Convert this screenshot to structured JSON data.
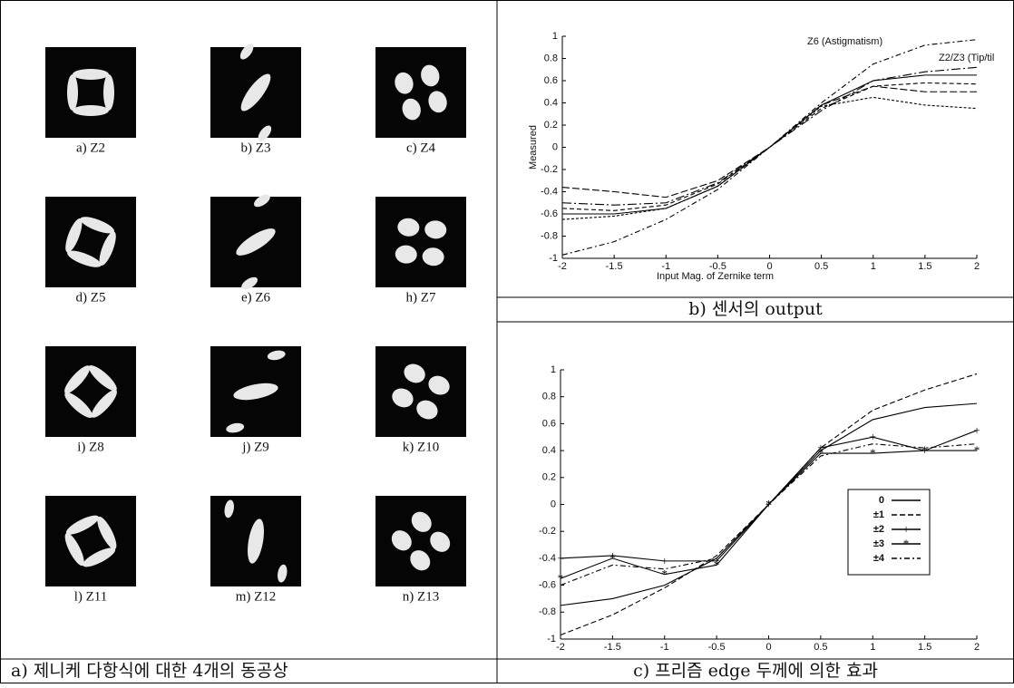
{
  "panel_a": {
    "caption": "a) 제니케 다항식에 대한 4개의 동공상",
    "images": [
      {
        "label": "a) Z2"
      },
      {
        "label": "b) Z3"
      },
      {
        "label": "c) Z4"
      },
      {
        "label": "d) Z5"
      },
      {
        "label": "e) Z6"
      },
      {
        "label": "h) Z7"
      },
      {
        "label": "i) Z8"
      },
      {
        "label": "j) Z9"
      },
      {
        "label": "k) Z10"
      },
      {
        "label": "l) Z11"
      },
      {
        "label": "m) Z12"
      },
      {
        "label": "n) Z13"
      }
    ]
  },
  "chart_data": [
    {
      "type": "line",
      "caption": "b) 센서의 output",
      "x_label": "Input Mag. of Zernike term",
      "y_label": "Measured",
      "annotations": [
        "Z6 (Astigmatism)",
        "Z2/Z3 (Tip/til"
      ],
      "x": [
        -2,
        -1.5,
        -1,
        -0.5,
        0,
        0.5,
        1,
        1.5,
        2
      ],
      "xlim": [
        -2,
        2
      ],
      "ylim": [
        -1,
        1
      ],
      "xticks": [
        -2,
        -1.5,
        -1,
        -0.5,
        0,
        0.5,
        1,
        1.5,
        2
      ],
      "yticks": [
        -1,
        -0.8,
        -0.6,
        -0.4,
        -0.2,
        0,
        0.2,
        0.4,
        0.6,
        0.8,
        1
      ],
      "series": [
        {
          "color": "#000000",
          "dash": "6 3 2 3",
          "values": [
            -0.97,
            -0.85,
            -0.65,
            -0.38,
            0,
            0.4,
            0.75,
            0.92,
            0.97
          ]
        },
        {
          "color": "#000000",
          "dash": "none",
          "values": [
            -0.6,
            -0.6,
            -0.55,
            -0.35,
            0,
            0.38,
            0.6,
            0.65,
            0.65
          ]
        },
        {
          "color": "#000000",
          "dash": "5 3",
          "values": [
            -0.55,
            -0.57,
            -0.52,
            -0.33,
            0,
            0.35,
            0.55,
            0.58,
            0.57
          ]
        },
        {
          "color": "#000000",
          "dash": "8 3",
          "values": [
            -0.36,
            -0.4,
            -0.45,
            -0.3,
            0,
            0.38,
            0.55,
            0.5,
            0.5
          ]
        },
        {
          "color": "#000000",
          "dash": "3 2",
          "values": [
            -0.65,
            -0.62,
            -0.55,
            -0.35,
            0,
            0.37,
            0.45,
            0.38,
            0.35
          ]
        },
        {
          "color": "#000000",
          "dash": "10 3 2 3",
          "values": [
            -0.5,
            -0.52,
            -0.5,
            -0.32,
            0,
            0.33,
            0.6,
            0.68,
            0.72
          ]
        }
      ]
    },
    {
      "type": "line",
      "caption": "c) 프리즘 edge 두께에 의한 효과",
      "x": [
        -2,
        -1.5,
        -1,
        -0.5,
        0,
        0.5,
        1,
        1.5,
        2
      ],
      "xlim": [
        -2,
        2
      ],
      "ylim": [
        -1,
        1
      ],
      "xticks": [
        -2,
        -1.5,
        -1,
        -0.5,
        0,
        0.5,
        1,
        1.5,
        2
      ],
      "yticks": [
        -1,
        -0.8,
        -0.6,
        -0.4,
        -0.2,
        0,
        0.2,
        0.4,
        0.6,
        0.8,
        1
      ],
      "legend": "lower right",
      "series": [
        {
          "name": "0",
          "color": "#000000",
          "dash": "none",
          "marker": "none",
          "values": [
            -0.75,
            -0.7,
            -0.6,
            -0.4,
            0,
            0.4,
            0.63,
            0.72,
            0.75
          ]
        },
        {
          "name": "±1",
          "color": "#000000",
          "dash": "6 3",
          "marker": "none",
          "values": [
            -0.97,
            -0.82,
            -0.62,
            -0.38,
            0,
            0.42,
            0.7,
            0.85,
            0.97
          ]
        },
        {
          "name": "±2",
          "color": "#000000",
          "dash": "none",
          "marker": "+",
          "values": [
            -0.4,
            -0.38,
            -0.42,
            -0.42,
            0,
            0.42,
            0.5,
            0.4,
            0.55
          ]
        },
        {
          "name": "±3",
          "color": "#000000",
          "dash": "none",
          "marker": "*",
          "values": [
            -0.55,
            -0.4,
            -0.52,
            -0.45,
            0,
            0.38,
            0.38,
            0.4,
            0.4
          ]
        },
        {
          "name": "±4",
          "color": "#000000",
          "dash": "6 3 2 3",
          "marker": "none",
          "values": [
            -0.6,
            -0.45,
            -0.48,
            -0.4,
            0,
            0.36,
            0.45,
            0.42,
            0.45
          ]
        }
      ]
    }
  ]
}
